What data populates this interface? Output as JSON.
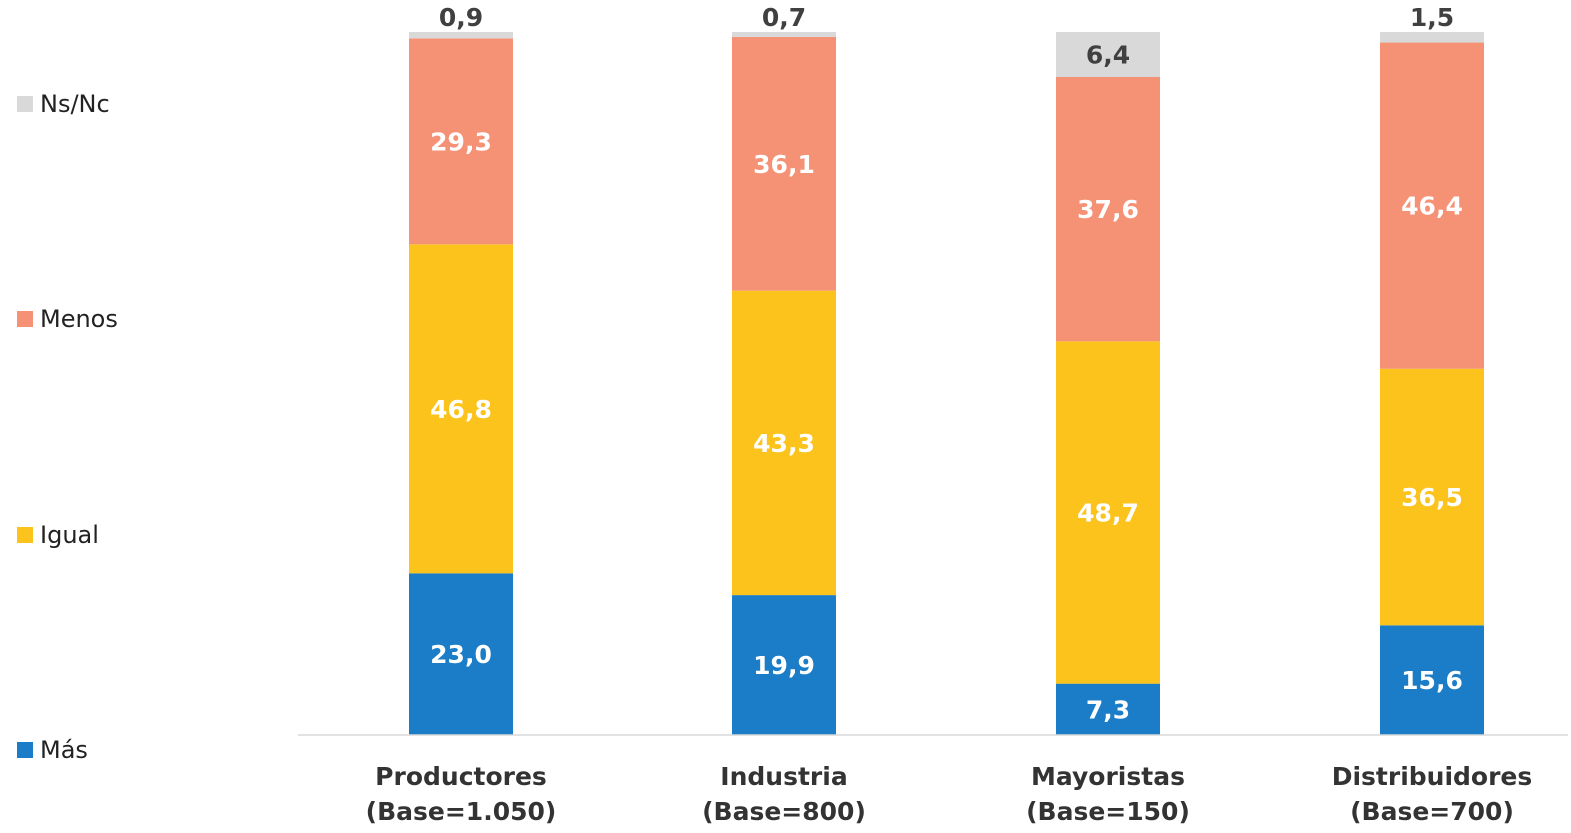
{
  "chart_data": {
    "type": "bar",
    "stacked": true,
    "categories": [
      [
        "Productores",
        "(Base=1.050)"
      ],
      [
        "Industria",
        "(Base=800)"
      ],
      [
        "Mayoristas",
        "(Base=150)"
      ],
      [
        "Distribuidores",
        "(Base=700)"
      ]
    ],
    "series": [
      {
        "name": "Más",
        "color": "#1b7cc7",
        "label_color": "#ffffff",
        "values": [
          23.0,
          19.9,
          7.3,
          15.6
        ],
        "labels": [
          "23,0",
          "19,9",
          "7,3",
          "15,6"
        ]
      },
      {
        "name": "Igual",
        "color": "#fbc31b",
        "label_color": "#ffffff",
        "values": [
          46.8,
          43.3,
          48.7,
          36.5
        ],
        "labels": [
          "46,8",
          "43,3",
          "48,7",
          "36,5"
        ]
      },
      {
        "name": "Menos",
        "color": "#f59276",
        "label_color": "#ffffff",
        "values": [
          29.3,
          36.1,
          37.6,
          46.4
        ],
        "labels": [
          "29,3",
          "36,1",
          "37,6",
          "46,4"
        ]
      },
      {
        "name": "Ns/Nc",
        "color": "#d9d9d9",
        "label_color": "#404040",
        "values": [
          0.9,
          0.7,
          6.4,
          1.5
        ],
        "labels": [
          "0,9",
          "0,7",
          "6,4",
          "1,5"
        ]
      }
    ],
    "ylim": [
      0,
      100
    ],
    "legend_position": "left",
    "grid": false
  }
}
